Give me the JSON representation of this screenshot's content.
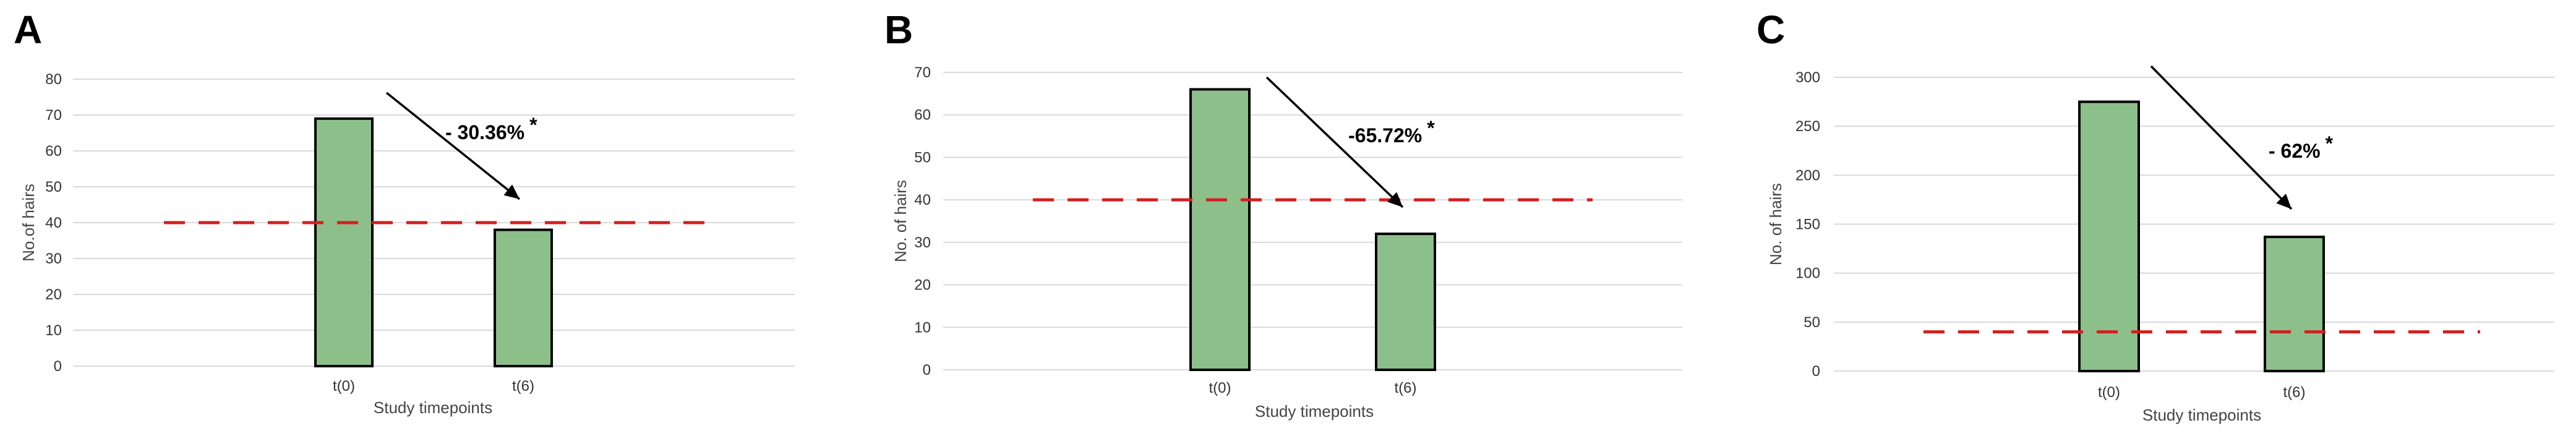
{
  "chart_data": [
    {
      "panel_label": "A",
      "type": "bar",
      "categories": [
        "t(0)",
        "t(6)"
      ],
      "values": [
        69,
        38
      ],
      "ylim": [
        0,
        80
      ],
      "yticks": [
        0,
        10,
        20,
        30,
        40,
        50,
        60,
        70,
        80
      ],
      "ylabel": "No.of hairs",
      "xlabel": "Study timepoints",
      "threshold": 40,
      "annotation": "- 30.36%",
      "annotation_mark": "*",
      "grid": true,
      "bar_color": "#8dbf8b",
      "threshold_color": "#d21f1f"
    },
    {
      "panel_label": "B",
      "type": "bar",
      "categories": [
        "t(0)",
        "t(6)"
      ],
      "values": [
        66,
        32
      ],
      "ylim": [
        0,
        70
      ],
      "yticks": [
        0,
        10,
        20,
        30,
        40,
        50,
        60,
        70
      ],
      "ylabel": "No. of hairs",
      "xlabel": "Study timepoints",
      "threshold": 40,
      "annotation": "-65.72%",
      "annotation_mark": "*",
      "grid": true,
      "bar_color": "#8dbf8b",
      "threshold_color": "#d21f1f"
    },
    {
      "panel_label": "C",
      "type": "bar",
      "categories": [
        "t(0)",
        "t(6)"
      ],
      "values": [
        275,
        137
      ],
      "ylim": [
        0,
        300
      ],
      "yticks": [
        0,
        50,
        100,
        150,
        200,
        250,
        300
      ],
      "ylabel": "No. of hairs",
      "xlabel": "Study timepoints",
      "threshold": 40,
      "annotation": "- 62%",
      "annotation_mark": "*",
      "grid": true,
      "bar_color": "#8dbf8b",
      "threshold_color": "#d21f1f"
    }
  ]
}
